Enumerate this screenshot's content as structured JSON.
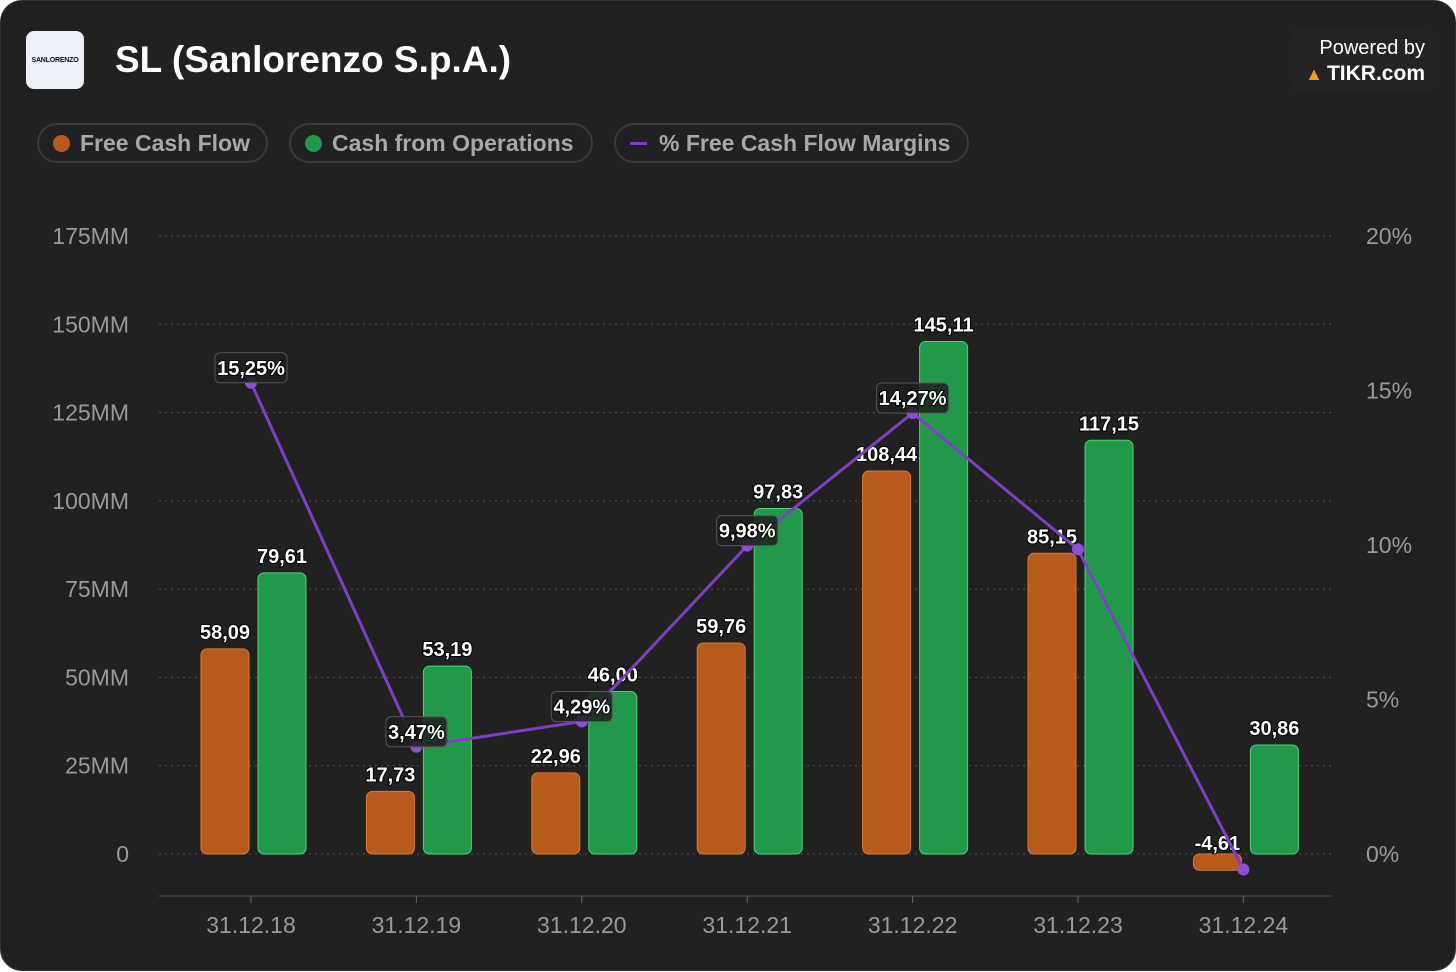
{
  "header": {
    "logo_text": "SANLORENZO",
    "title": "SL (Sanlorenzo S.p.A.)",
    "powered_by": "Powered by",
    "brand": "TIKR.com"
  },
  "legend": [
    {
      "label": "Free Cash Flow",
      "color": "#b85a1c"
    },
    {
      "label": "Cash from Operations",
      "color": "#22994a"
    },
    {
      "label": "% Free Cash Flow Margins",
      "color": "#7e3fc4"
    }
  ],
  "chart_data": {
    "type": "bar",
    "title": "SL (Sanlorenzo S.p.A.)",
    "categories": [
      "31.12.18",
      "31.12.19",
      "31.12.20",
      "31.12.21",
      "31.12.22",
      "31.12.23",
      "31.12.24"
    ],
    "series": [
      {
        "name": "Free Cash Flow",
        "type": "bar",
        "axis": "left",
        "values": [
          58.09,
          17.73,
          22.96,
          59.76,
          108.44,
          85.15,
          -4.61
        ],
        "labels": [
          "58,09",
          "17,73",
          "22,96",
          "59,76",
          "108,44",
          "85,15",
          "-4,61"
        ]
      },
      {
        "name": "Cash from Operations",
        "type": "bar",
        "axis": "left",
        "values": [
          79.61,
          53.19,
          46.0,
          97.83,
          145.11,
          117.15,
          30.86
        ],
        "labels": [
          "79,61",
          "53,19",
          "46,00",
          "97,83",
          "145,11",
          "117,15",
          "30,86"
        ]
      },
      {
        "name": "% Free Cash Flow Margins",
        "type": "line",
        "axis": "right",
        "values": [
          15.25,
          3.47,
          4.29,
          9.98,
          14.27,
          9.86,
          -0.5
        ],
        "labels": [
          "15,25%",
          "3,47%",
          "4,29%",
          "9,98%",
          "14,27%",
          "",
          ""
        ]
      }
    ],
    "left_axis": {
      "ylim": [
        0,
        175
      ],
      "ticks": [
        "0",
        "25MM",
        "50MM",
        "75MM",
        "100MM",
        "125MM",
        "150MM",
        "175MM"
      ]
    },
    "right_axis": {
      "ylim": [
        0,
        20
      ],
      "ticks": [
        "0%",
        "5%",
        "10%",
        "15%",
        "20%"
      ]
    },
    "grid": true,
    "legend_position": "top-left"
  }
}
